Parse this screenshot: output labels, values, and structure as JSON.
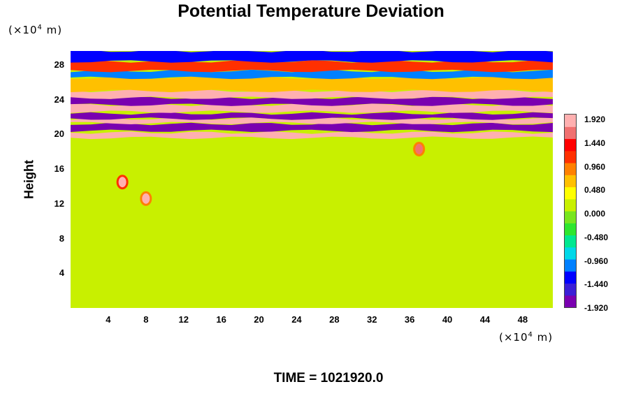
{
  "title": "Potential Temperature Deviation",
  "yaxis_unit": {
    "prefix": "(×10",
    "exp": "4",
    "suffix": " m)"
  },
  "xaxis_unit": {
    "prefix": "(×10",
    "exp": "4",
    "suffix": " m)"
  },
  "ylabel": "Height",
  "time_label": "TIME = 1021920.0",
  "chart_data": {
    "type": "heatmap",
    "title": "Potential Temperature Deviation",
    "xlabel": "",
    "ylabel": "Height",
    "x_unit": "(×10⁴ m)",
    "y_unit": "(×10⁴ m)",
    "xlim": [
      0,
      51.2
    ],
    "ylim": [
      0,
      29.6
    ],
    "x_ticks": [
      "4",
      "8",
      "12",
      "16",
      "20",
      "24",
      "28",
      "32",
      "36",
      "40",
      "44",
      "48"
    ],
    "y_ticks": [
      "4",
      "8",
      "12",
      "16",
      "20",
      "24",
      "28"
    ],
    "colorbar": {
      "range": [
        -1.92,
        1.92
      ],
      "tick_labels": [
        "1.920",
        "1.440",
        "0.960",
        "0.480",
        "0.000",
        "-0.480",
        "-0.960",
        "-1.440",
        "-1.920"
      ],
      "colors": [
        "#7a00b0",
        "#3b1fd6",
        "#0000ff",
        "#0080ff",
        "#00d8e8",
        "#00e890",
        "#2ee62e",
        "#78e61e",
        "#c8f000",
        "#ffff00",
        "#ffc000",
        "#ff8000",
        "#ff3000",
        "#ff0000",
        "#f07070",
        "#ffb0b0"
      ]
    },
    "background_value": 0.0,
    "features": [
      {
        "y_from": 19.6,
        "y_to": 20.2,
        "value": 1.92
      },
      {
        "y_from": 20.4,
        "y_to": 21.2,
        "value": -1.92
      },
      {
        "y_from": 21.3,
        "y_to": 21.8,
        "value": 1.92
      },
      {
        "y_from": 21.8,
        "y_to": 22.4,
        "value": -1.92
      },
      {
        "y_from": 22.6,
        "y_to": 23.4,
        "value": 1.92
      },
      {
        "y_from": 23.4,
        "y_to": 24.2,
        "value": -1.92
      },
      {
        "y_from": 24.2,
        "y_to": 25.0,
        "value": 1.92
      },
      {
        "y_from": 25.0,
        "y_to": 26.5,
        "value": 0.5
      },
      {
        "y_from": 26.5,
        "y_to": 27.3,
        "value": -1.0
      },
      {
        "y_from": 27.3,
        "y_to": 28.4,
        "value": 1.0
      },
      {
        "y_from": 28.4,
        "y_to": 29.6,
        "value": -1.4
      },
      {
        "x": 5.5,
        "y": 14.5,
        "value": 1.9
      },
      {
        "x": 8.0,
        "y": 12.6,
        "value": 1.7
      },
      {
        "x": 37.0,
        "y": 18.3,
        "value": 1.5
      }
    ]
  }
}
